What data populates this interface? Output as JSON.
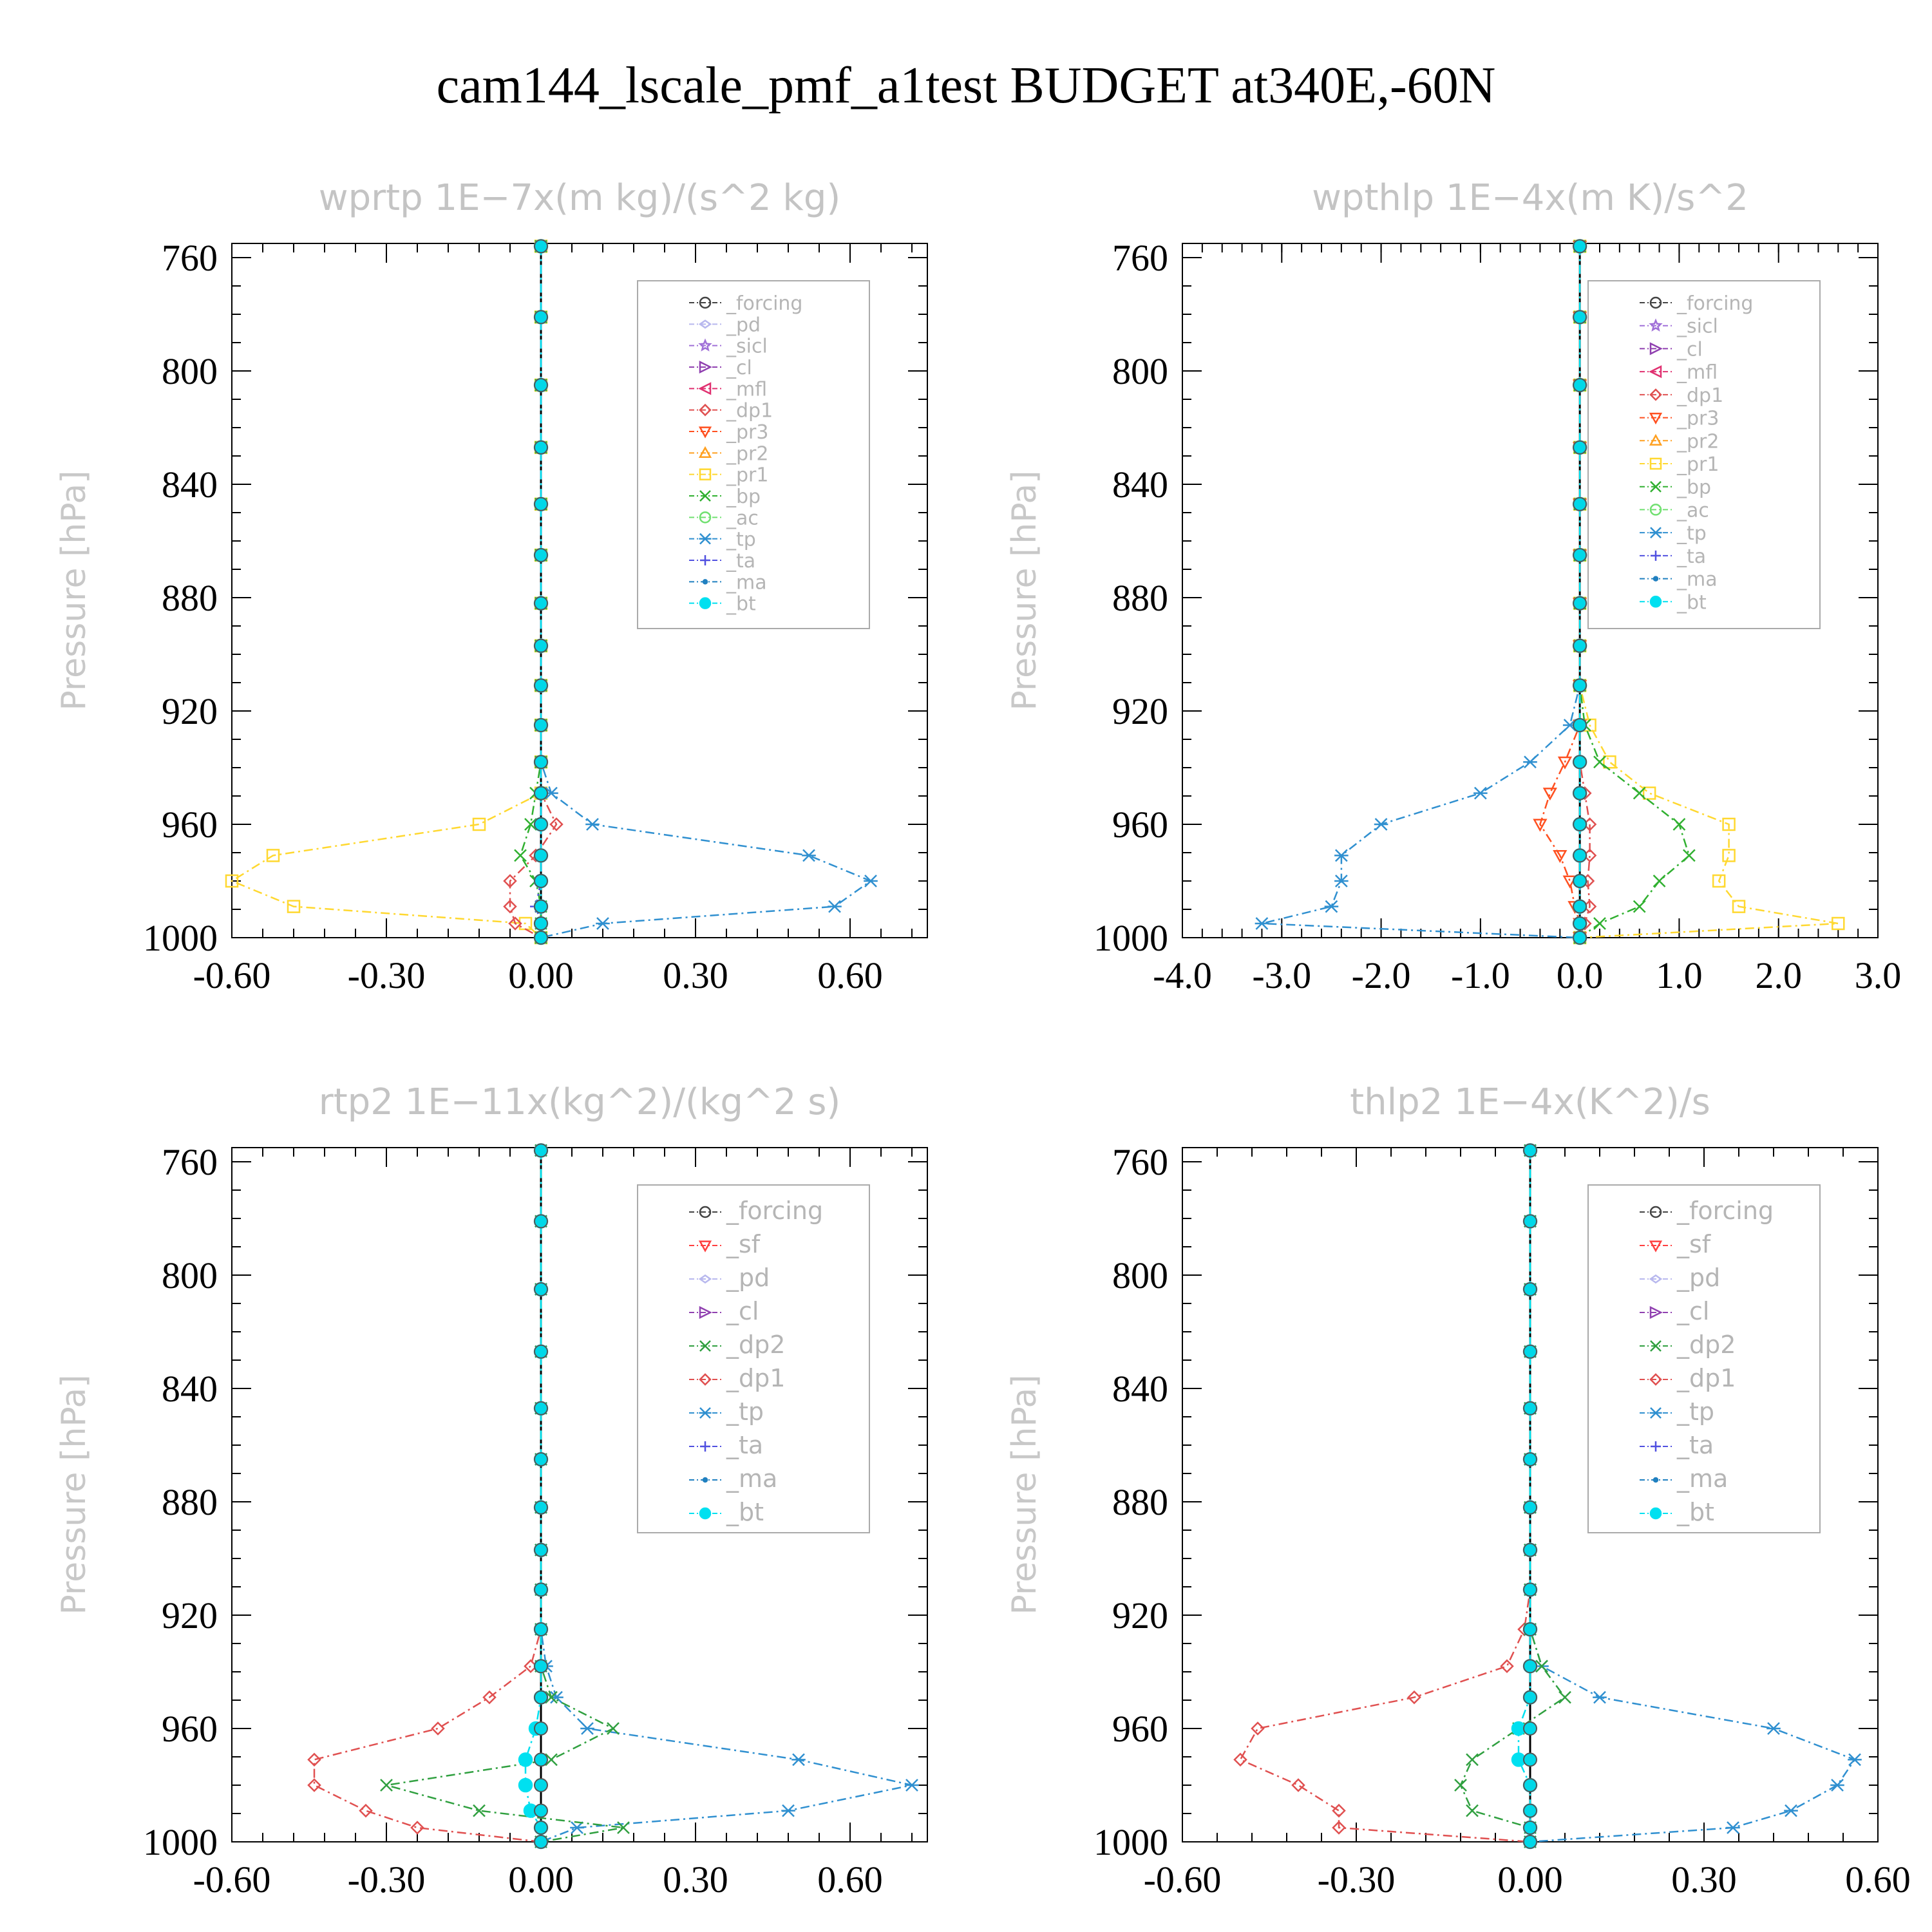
{
  "title": "cam144_lscale_pmf_a1test  BUDGET at340E,-60N",
  "colors": {
    "_forcing": "#444444",
    "_pd": "#b8b8ee",
    "_sicl": "#a070d8",
    "_cl": "#9040b0",
    "_mfl": "#e03070",
    "_dp1": "#e05050",
    "_pr3": "#ff5020",
    "_pr2": "#ffa020",
    "_pr1": "#ffd830",
    "_bp": "#30b030",
    "_ac": "#70e070",
    "_tp": "#3090d0",
    "_ta": "#5050e0",
    "_ma": "#2080c0",
    "_bt": "#00e0f0",
    "_sf": "#ff4040",
    "_dp2": "#30a040"
  },
  "chart_data": [
    {
      "type": "line",
      "title": "wprtp  1E−7x(m kg)/(s^2 kg)",
      "ylabel": "Pressure [hPa]",
      "xlim": [
        -0.6,
        0.75
      ],
      "ylim": [
        1000,
        755
      ],
      "xticks": [
        -0.6,
        -0.3,
        0.0,
        0.3,
        0.6
      ],
      "xtick_labels": [
        "-0.60",
        "-0.30",
        "0.00",
        "0.30",
        "0.60"
      ],
      "yticks": [
        760,
        800,
        840,
        880,
        920,
        960,
        1000
      ],
      "ytick_labels": [
        "760",
        "800",
        "840",
        "880",
        "920",
        "960",
        "1000"
      ],
      "legend_location": "top-right",
      "legend": [
        "_forcing",
        "_pd",
        "_sicl",
        "_cl",
        "_mfl",
        "_dp1",
        "_pr3",
        "_pr2",
        "_pr1",
        "_bp",
        "_ac",
        "_tp",
        "_ta",
        "_ma",
        "_bt"
      ],
      "pressure_levels": [
        756,
        781,
        805,
        827,
        847,
        865,
        882,
        897,
        911,
        925,
        938,
        949,
        960,
        971,
        980,
        989,
        995,
        1000
      ],
      "series": [
        {
          "name": "_pr1",
          "values": [
            0,
            0,
            0,
            0,
            0,
            0,
            0,
            0,
            0,
            0,
            0,
            0,
            -0.12,
            -0.52,
            -0.6,
            -0.48,
            -0.03,
            0
          ]
        },
        {
          "name": "_tp",
          "values": [
            0,
            0,
            0,
            0,
            0,
            0,
            0,
            0,
            0,
            0,
            0,
            0.02,
            0.1,
            0.52,
            0.64,
            0.57,
            0.12,
            0
          ]
        },
        {
          "name": "_dp1",
          "values": [
            0,
            0,
            0,
            0,
            0,
            0,
            0,
            0,
            0,
            0,
            0,
            0,
            0.03,
            -0.01,
            -0.06,
            -0.06,
            -0.05,
            0
          ]
        },
        {
          "name": "_bp",
          "values": [
            0,
            0,
            0,
            0,
            0,
            0,
            0,
            0,
            0,
            0,
            0,
            -0.01,
            -0.02,
            -0.04,
            -0.01,
            0,
            0,
            0
          ]
        },
        {
          "name": "_ta",
          "values": [
            0,
            0,
            0,
            0,
            0,
            0,
            0,
            0,
            0,
            0,
            0,
            0,
            0,
            0,
            0,
            -0.01,
            0,
            0
          ]
        },
        {
          "name": "_bt",
          "values": [
            0,
            0,
            0,
            0,
            0,
            0,
            0,
            0,
            0,
            0,
            0,
            0,
            0,
            0,
            0,
            0,
            0,
            0
          ]
        }
      ]
    },
    {
      "type": "line",
      "title": "wpthlp  1E−4x(m K)/s^2",
      "ylabel": "Pressure [hPa]",
      "xlim": [
        -4.0,
        3.0
      ],
      "ylim": [
        1000,
        755
      ],
      "xticks": [
        -4,
        -3,
        -2,
        -1,
        0,
        1,
        2,
        3
      ],
      "xtick_labels": [
        "-4.0",
        "-3.0",
        "-2.0",
        "-1.0",
        "0.0",
        "1.0",
        "2.0",
        "3.0"
      ],
      "yticks": [
        760,
        800,
        840,
        880,
        920,
        960,
        1000
      ],
      "ytick_labels": [
        "760",
        "800",
        "840",
        "880",
        "920",
        "960",
        "1000"
      ],
      "legend_location": "top-right",
      "legend": [
        "_forcing",
        "_sicl",
        "_cl",
        "_mfl",
        "_dp1",
        "_pr3",
        "_pr2",
        "_pr1",
        "_bp",
        "_ac",
        "_tp",
        "_ta",
        "_ma",
        "_bt"
      ],
      "pressure_levels": [
        756,
        781,
        805,
        827,
        847,
        865,
        882,
        897,
        911,
        925,
        938,
        949,
        960,
        971,
        980,
        989,
        995,
        1000
      ],
      "series": [
        {
          "name": "_pr1",
          "values": [
            0,
            0,
            0,
            0,
            0,
            0,
            0,
            0,
            0,
            0.1,
            0.3,
            0.7,
            1.5,
            1.5,
            1.4,
            1.6,
            2.6,
            0
          ]
        },
        {
          "name": "_tp",
          "values": [
            0,
            0,
            0,
            0,
            0,
            0,
            0,
            0,
            0,
            -0.1,
            -0.5,
            -1.0,
            -2.0,
            -2.4,
            -2.4,
            -2.5,
            -3.2,
            0
          ]
        },
        {
          "name": "_bp",
          "values": [
            0,
            0,
            0,
            0,
            0,
            0,
            0,
            0,
            0,
            0.05,
            0.2,
            0.6,
            1.0,
            1.1,
            0.8,
            0.6,
            0.2,
            0
          ]
        },
        {
          "name": "_pr3",
          "values": [
            0,
            0,
            0,
            0,
            0,
            0,
            0,
            0,
            0,
            0,
            -0.15,
            -0.3,
            -0.4,
            -0.2,
            -0.1,
            -0.05,
            0,
            0
          ]
        },
        {
          "name": "_dp1",
          "values": [
            0,
            0,
            0,
            0,
            0,
            0,
            0,
            0,
            0,
            0,
            0,
            0.05,
            0.1,
            0.1,
            0.08,
            0.1,
            0.05,
            0
          ]
        },
        {
          "name": "_bt",
          "values": [
            0,
            0,
            0,
            0,
            0,
            0,
            0,
            0,
            0,
            0,
            0,
            0,
            0,
            0,
            0,
            0,
            0,
            0
          ]
        }
      ]
    },
    {
      "type": "line",
      "title": "rtp2  1E−11x(kg^2)/(kg^2 s)",
      "ylabel": "Pressure [hPa]",
      "xlim": [
        -0.6,
        0.75
      ],
      "ylim": [
        1000,
        755
      ],
      "xticks": [
        -0.6,
        -0.3,
        0.0,
        0.3,
        0.6
      ],
      "xtick_labels": [
        "-0.60",
        "-0.30",
        "0.00",
        "0.30",
        "0.60"
      ],
      "yticks": [
        760,
        800,
        840,
        880,
        920,
        960,
        1000
      ],
      "ytick_labels": [
        "760",
        "800",
        "840",
        "880",
        "920",
        "960",
        "1000"
      ],
      "legend_location": "top-right",
      "legend": [
        "_forcing",
        "_sf",
        "_pd",
        "_cl",
        "_dp2",
        "_dp1",
        "_tp",
        "_ta",
        "_ma",
        "_bt"
      ],
      "pressure_levels": [
        756,
        781,
        805,
        827,
        847,
        865,
        882,
        897,
        911,
        925,
        938,
        949,
        960,
        971,
        980,
        989,
        995,
        1000
      ],
      "series": [
        {
          "name": "_dp1",
          "values": [
            0,
            0,
            0,
            0,
            0,
            0,
            0,
            0,
            0,
            0,
            -0.02,
            -0.1,
            -0.2,
            -0.44,
            -0.44,
            -0.34,
            -0.24,
            0
          ]
        },
        {
          "name": "_tp",
          "values": [
            0,
            0,
            0,
            0,
            0,
            0,
            0,
            0,
            0,
            0,
            0.01,
            0.03,
            0.09,
            0.5,
            0.72,
            0.48,
            0.07,
            0
          ]
        },
        {
          "name": "_dp2",
          "values": [
            0,
            0,
            0,
            0,
            0,
            0,
            0,
            0,
            0,
            0,
            0,
            0.02,
            0.14,
            0.02,
            -0.3,
            -0.12,
            0.16,
            0
          ]
        },
        {
          "name": "_bt",
          "values": [
            0,
            0,
            0,
            0,
            0,
            0,
            0,
            0,
            0,
            0,
            0,
            0,
            -0.01,
            -0.03,
            -0.03,
            -0.02,
            0,
            0
          ]
        }
      ]
    },
    {
      "type": "line",
      "title": "thlp2  1E−4x(K^2)/s",
      "ylabel": "Pressure [hPa]",
      "xlim": [
        -0.6,
        0.6
      ],
      "ylim": [
        1000,
        755
      ],
      "xticks": [
        -0.6,
        -0.3,
        0.0,
        0.3,
        0.6
      ],
      "xtick_labels": [
        "-0.60",
        "-0.30",
        "0.00",
        "0.30",
        "0.60"
      ],
      "yticks": [
        760,
        800,
        840,
        880,
        920,
        960,
        1000
      ],
      "ytick_labels": [
        "760",
        "800",
        "840",
        "880",
        "920",
        "960",
        "1000"
      ],
      "legend_location": "top-right",
      "legend": [
        "_forcing",
        "_sf",
        "_pd",
        "_cl",
        "_dp2",
        "_dp1",
        "_tp",
        "_ta",
        "_ma",
        "_bt"
      ],
      "pressure_levels": [
        756,
        781,
        805,
        827,
        847,
        865,
        882,
        897,
        911,
        925,
        938,
        949,
        960,
        971,
        980,
        989,
        995,
        1000
      ],
      "series": [
        {
          "name": "_dp1",
          "values": [
            0,
            0,
            0,
            0,
            0,
            0,
            0,
            0,
            0,
            -0.01,
            -0.04,
            -0.2,
            -0.47,
            -0.5,
            -0.4,
            -0.33,
            -0.33,
            0
          ]
        },
        {
          "name": "_tp",
          "values": [
            0,
            0,
            0,
            0,
            0,
            0,
            0,
            0,
            0,
            0,
            0.02,
            0.12,
            0.42,
            0.56,
            0.53,
            0.45,
            0.35,
            0
          ]
        },
        {
          "name": "_dp2",
          "values": [
            0,
            0,
            0,
            0,
            0,
            0,
            0,
            0,
            0,
            0,
            0.02,
            0.06,
            -0.02,
            -0.1,
            -0.12,
            -0.1,
            0,
            0
          ]
        },
        {
          "name": "_bt",
          "values": [
            0,
            0,
            0,
            0,
            0,
            0,
            0,
            0,
            0,
            0,
            0,
            0,
            -0.02,
            -0.02,
            0,
            0,
            0,
            0
          ]
        }
      ]
    }
  ]
}
